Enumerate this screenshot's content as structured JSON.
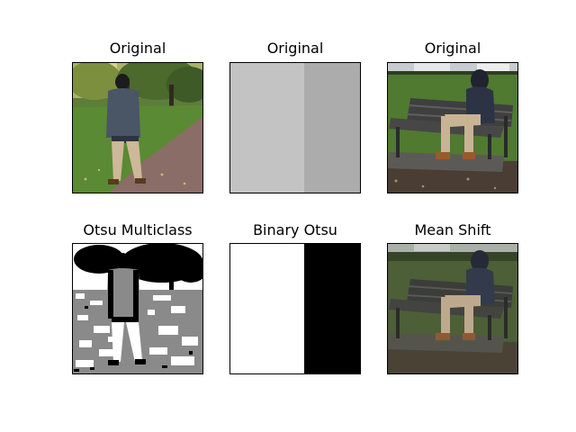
{
  "panels": [
    {
      "title": "Original"
    },
    {
      "title": "Original"
    },
    {
      "title": "Original"
    },
    {
      "title": "Otsu Multiclass"
    },
    {
      "title": "Binary Otsu"
    },
    {
      "title": "Mean Shift"
    }
  ],
  "colors": {
    "gray_left": "#c3c3c3",
    "gray_right": "#acacac",
    "grass": "#4f7a30",
    "path": "#8a6d66",
    "jacket": "#4a5566",
    "pants": "#cdb899",
    "bench": "#3f3f3f",
    "otsu_gray": "#8a8a8a"
  }
}
